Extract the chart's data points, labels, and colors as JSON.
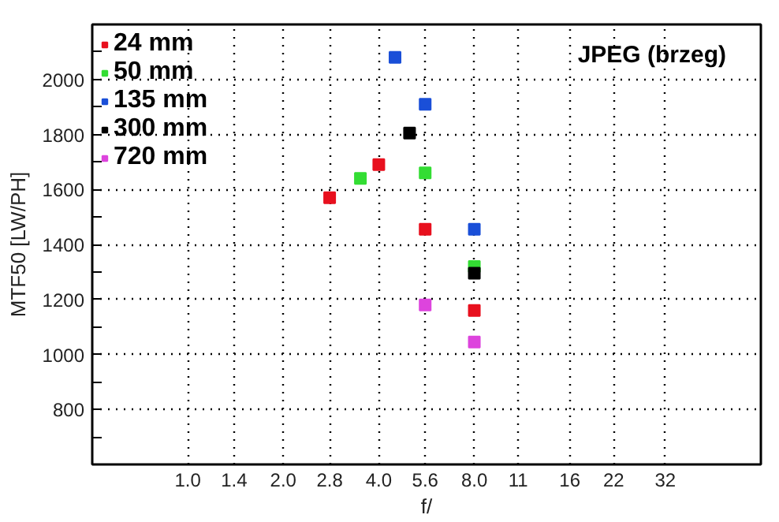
{
  "chart_data": {
    "type": "scatter",
    "xlabel": "f/",
    "ylabel": "MTF50 [LW/PH]",
    "annotations": [
      "JPEG (brzeg)"
    ],
    "log": "x",
    "marker": "square",
    "grid": true,
    "legend": "top left",
    "xlim": [
      0.5,
      64
    ],
    "ylim": [
      600,
      2200
    ],
    "xticks": [
      {
        "value": 1,
        "label": "1.0"
      },
      1.4,
      {
        "value": 2,
        "label": "2.0"
      },
      2.8,
      {
        "value": 4,
        "label": "4.0"
      },
      5.6,
      {
        "value": 8,
        "label": "8.0"
      },
      11,
      16,
      22,
      32
    ],
    "yticks": [
      {
        "value": 700,
        "label": null
      },
      800,
      {
        "value": 900,
        "label": null
      },
      1000,
      {
        "value": 1100,
        "label": null
      },
      1200,
      {
        "value": 1300,
        "label": null
      },
      1400,
      {
        "value": 1500,
        "label": null
      },
      1600,
      {
        "value": 1700,
        "label": null
      },
      1800,
      {
        "value": 1900,
        "label": null
      },
      2000,
      {
        "value": 2100,
        "label": null
      }
    ],
    "series": [
      {
        "name": "24 mm",
        "color": "#e8101e",
        "x": [
          2.8,
          4,
          5.6,
          8
        ],
        "values": [
          1570,
          1690,
          1455,
          1160
        ]
      },
      {
        "name": "50 mm",
        "color": "#33dd33",
        "x": [
          3.5,
          5.6,
          8
        ],
        "values": [
          1640,
          1660,
          1320
        ]
      },
      {
        "name": "135 mm",
        "color": "#1a4fd8",
        "x": [
          4.5,
          5.6,
          8
        ],
        "values": [
          2080,
          1910,
          1455
        ]
      },
      {
        "name": "300 mm",
        "color": "#000000",
        "x": [
          5.0,
          8
        ],
        "values": [
          1805,
          1295
        ]
      },
      {
        "name": "720 mm",
        "color": "#dd44dd",
        "x": [
          5.6,
          8
        ],
        "values": [
          1180,
          1045
        ]
      }
    ]
  }
}
